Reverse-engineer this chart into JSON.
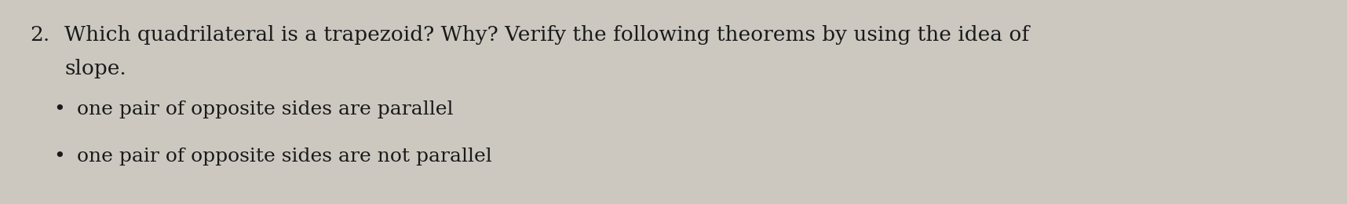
{
  "background_color": "#ccc8c0",
  "number": "2.",
  "line1": "Which quadrilateral is a trapezoid? Why? Verify the following theorems by using the idea of",
  "line2": "slope.",
  "bullet1": "one pair of opposite sides are parallel",
  "bullet2": "one pair of opposite sides are not parallel",
  "font_size_main": 19,
  "font_size_bullet": 18,
  "text_color": "#1a1a1a",
  "bullet_char": "•",
  "fig_width": 17.16,
  "fig_height": 2.6,
  "dpi": 100
}
